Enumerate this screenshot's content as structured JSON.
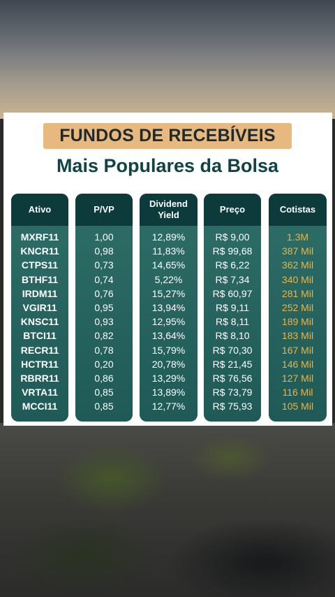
{
  "title": "FUNDOS DE RECEBÍVEIS",
  "subtitle": "Mais Populares da Bolsa",
  "columns": {
    "ativo": "Ativo",
    "pvp": "P/VP",
    "dy_line1": "Dividend",
    "dy_line2": "Yield",
    "preco": "Preço",
    "cotistas": "Cotistas"
  },
  "rows": [
    {
      "ativo": "MXRF11",
      "pvp": "1,00",
      "dy": "12,89%",
      "preco": "R$ 9,00",
      "cotistas": "1.3M"
    },
    {
      "ativo": "KNCR11",
      "pvp": "0,98",
      "dy": "11,83%",
      "preco": "R$ 99,68",
      "cotistas": "387 Mil"
    },
    {
      "ativo": "CTPS11",
      "pvp": "0,73",
      "dy": "14,65%",
      "preco": "R$ 6,22",
      "cotistas": "362 Mil"
    },
    {
      "ativo": "BTHF11",
      "pvp": "0,74",
      "dy": "5,22%",
      "preco": "R$ 7,34",
      "cotistas": "340 Mil"
    },
    {
      "ativo": "IRDM11",
      "pvp": "0,76",
      "dy": "15,27%",
      "preco": "R$ 60,97",
      "cotistas": "281 Mil"
    },
    {
      "ativo": "VGIR11",
      "pvp": "0,95",
      "dy": "13,94%",
      "preco": "R$ 9,11",
      "cotistas": "252 Mil"
    },
    {
      "ativo": "KNSC11",
      "pvp": "0,93",
      "dy": "12,95%",
      "preco": "R$ 8,11",
      "cotistas": "189 Mil"
    },
    {
      "ativo": "BTCI11",
      "pvp": "0,82",
      "dy": "13,64%",
      "preco": "R$ 8,10",
      "cotistas": "183 Mil"
    },
    {
      "ativo": "RECR11",
      "pvp": "0,78",
      "dy": "15,79%",
      "preco": "R$ 70,30",
      "cotistas": "167 Mil"
    },
    {
      "ativo": "HCTR11",
      "pvp": "0,20",
      "dy": "20,78%",
      "preco": "R$ 21,45",
      "cotistas": "146 Mil"
    },
    {
      "ativo": "RBRR11",
      "pvp": "0,86",
      "dy": "13,29%",
      "preco": "R$ 76,56",
      "cotistas": "127 Mil"
    },
    {
      "ativo": "VRTA11",
      "pvp": "0,85",
      "dy": "13,89%",
      "preco": "R$ 73,79",
      "cotistas": "116 Mil"
    },
    {
      "ativo": "MCCI11",
      "pvp": "0,85",
      "dy": "12,77%",
      "preco": "R$ 75,93",
      "cotistas": "105 Mil"
    }
  ],
  "colors": {
    "title_bg": "#e7b87f",
    "subtitle_text": "#0f4346",
    "header_bg": "#0d3a3b",
    "column_bg": "#2f6e68",
    "cotistas_text": "#f0b441"
  }
}
